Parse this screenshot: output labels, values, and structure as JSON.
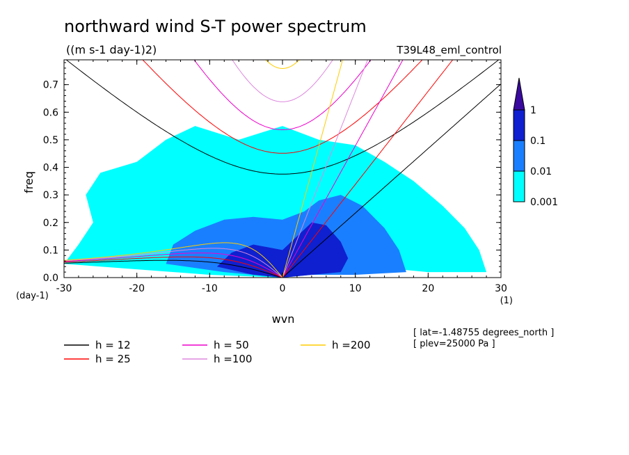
{
  "chart_data": {
    "type": "heatmap",
    "title": "northward wind S-T power spectrum",
    "subtitle": "((m s-1 day-1)2)",
    "run_label": "T39L48_eml_control",
    "xlabel": "wvn",
    "x_unit": "(1)",
    "ylabel": "freq",
    "y_unit": "(day-1)",
    "xlim": [
      -30,
      30
    ],
    "ylim": [
      0,
      0.79
    ],
    "x_ticks": [
      -30,
      -20,
      -10,
      0,
      10,
      20,
      30
    ],
    "x_tick_labels": [
      "-30",
      "-20",
      "-10",
      "0",
      "10",
      "20",
      "30"
    ],
    "y_ticks": [
      0,
      0.1,
      0.2,
      0.3,
      0.4,
      0.5,
      0.6,
      0.7
    ],
    "y_tick_labels": [
      "0.0",
      "0.1",
      "0.2",
      "0.3",
      "0.4",
      "0.5",
      "0.6",
      "0.7"
    ],
    "colorbar": {
      "levels": [
        0.001,
        0.01,
        0.1,
        1
      ],
      "labels": [
        "0.001",
        "0.01",
        "0.1",
        "1"
      ],
      "colors": [
        "#00ffff",
        "#1a7fff",
        "#0f20d0",
        "#3a0aa0"
      ]
    },
    "contour_regions": [
      {
        "level": 0.001,
        "polygon": [
          [
            -30,
            0.05
          ],
          [
            -28,
            0.12
          ],
          [
            -26,
            0.2
          ],
          [
            -27,
            0.3
          ],
          [
            -25,
            0.38
          ],
          [
            -20,
            0.42
          ],
          [
            -16,
            0.5
          ],
          [
            -12,
            0.55
          ],
          [
            -6,
            0.5
          ],
          [
            0,
            0.55
          ],
          [
            5,
            0.5
          ],
          [
            10,
            0.48
          ],
          [
            14,
            0.42
          ],
          [
            18,
            0.35
          ],
          [
            22,
            0.26
          ],
          [
            25,
            0.18
          ],
          [
            27,
            0.1
          ],
          [
            28,
            0.02
          ],
          [
            20,
            0.02
          ],
          [
            12,
            0.04
          ],
          [
            4,
            0.02
          ],
          [
            0,
            0
          ],
          [
            -10,
            0.01
          ],
          [
            -20,
            0.03
          ]
        ]
      },
      {
        "level": 0.01,
        "polygon": [
          [
            -16,
            0.05
          ],
          [
            -15,
            0.12
          ],
          [
            -12,
            0.17
          ],
          [
            -8,
            0.21
          ],
          [
            -4,
            0.22
          ],
          [
            0,
            0.21
          ],
          [
            3,
            0.24
          ],
          [
            5,
            0.28
          ],
          [
            8,
            0.3
          ],
          [
            11,
            0.26
          ],
          [
            14,
            0.18
          ],
          [
            16,
            0.1
          ],
          [
            17,
            0.02
          ],
          [
            10,
            0.01
          ],
          [
            4,
            0.01
          ],
          [
            0,
            0
          ],
          [
            -8,
            0.02
          ]
        ]
      },
      {
        "level": 0.1,
        "polygon": [
          [
            -9,
            0.04
          ],
          [
            -7,
            0.09
          ],
          [
            -4,
            0.12
          ],
          [
            0,
            0.1
          ],
          [
            2,
            0.15
          ],
          [
            4,
            0.2
          ],
          [
            6,
            0.19
          ],
          [
            8,
            0.13
          ],
          [
            9,
            0.07
          ],
          [
            8,
            0.02
          ],
          [
            4,
            0.01
          ],
          [
            0,
            0
          ],
          [
            -4,
            0.01
          ]
        ]
      }
    ],
    "reference_lines": [
      {
        "name": "h = 12",
        "h": 12,
        "color": "#000000"
      },
      {
        "name": "h = 25",
        "h": 25,
        "color": "#ff0000"
      },
      {
        "name": "h = 50",
        "h": 50,
        "color": "#ee00cc"
      },
      {
        "name": "h =100",
        "h": 100,
        "color": "#dd88dd"
      },
      {
        "name": "h =200",
        "h": 200,
        "color": "#ffcc00"
      }
    ],
    "annotations": [
      "[ lat=-1.48755 degrees_north ]",
      "[ plev=25000 Pa ]"
    ]
  }
}
